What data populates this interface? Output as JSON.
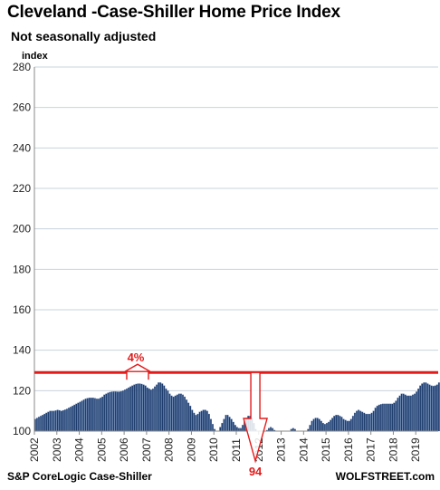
{
  "header": {
    "title": "Cleveland -Case-Shiller Home Price Index",
    "subtitle": "Not seasonally adjusted",
    "unit_label": "index"
  },
  "footer": {
    "source": "S&P CoreLogic Case-Shiller",
    "brand": "WOLFSTREET.com"
  },
  "colors": {
    "bar": "#1f3d6e",
    "bar_edge": "#6f8fc0",
    "reference_line": "#e31b1b",
    "gridline": "#c9d3dd"
  },
  "annotations": {
    "peak_change_label": "4%",
    "trough_label": "94",
    "reference_level": 129,
    "trough_value": 94,
    "up_arrow_year": 2006.6,
    "down_arrow_year": 2011.85
  },
  "chart_data": {
    "type": "bar",
    "title": "Cleveland -Case-Shiller Home Price Index",
    "subtitle": "Not seasonally adjusted",
    "ylabel": "index",
    "xlabel": "",
    "ylim": [
      100,
      280
    ],
    "yticks": [
      100,
      120,
      140,
      160,
      180,
      200,
      220,
      240,
      260,
      280
    ],
    "x_range": [
      2002,
      2020
    ],
    "x_tick_labels": [
      "2002",
      "2003",
      "2004",
      "2005",
      "2006",
      "2007",
      "2008",
      "2009",
      "2010",
      "2011",
      "2012",
      "2013",
      "2014",
      "2015",
      "2016",
      "2017",
      "2018",
      "2019"
    ],
    "grid": true,
    "legend": "none",
    "frequency": "monthly",
    "start": "2002-01",
    "end": "2019-09",
    "series": [
      {
        "values": [
          106,
          106.5,
          107,
          107.5,
          108,
          108.5,
          109,
          109.5,
          110,
          110,
          110,
          110.2,
          110.5,
          110.3,
          110,
          110.3,
          110.6,
          111,
          111.5,
          112,
          112.5,
          113,
          113.5,
          114,
          114.5,
          115,
          115.5,
          116,
          116.3,
          116.5,
          116.5,
          116.5,
          116.3,
          116,
          116,
          116.5,
          117,
          118,
          118.5,
          119,
          119.3,
          119.5,
          119.6,
          119.6,
          119.5,
          119.5,
          119.7,
          120,
          120.5,
          121,
          121.5,
          122,
          122.5,
          123,
          123.3,
          123.5,
          123.5,
          123.3,
          123,
          122.5,
          121.5,
          121,
          120.5,
          121,
          122,
          123,
          124,
          124,
          123.5,
          122.5,
          121,
          120,
          118.5,
          117.5,
          117,
          117.5,
          118,
          118.5,
          118.5,
          118,
          117,
          115.5,
          114,
          112.5,
          110.5,
          109,
          108,
          108.5,
          109.5,
          110,
          110.5,
          110.5,
          110,
          108.5,
          106,
          103.5,
          101,
          100,
          100,
          102,
          104,
          106,
          108,
          108,
          107,
          106,
          104.5,
          103,
          102,
          101.5,
          101.5,
          103,
          105,
          106.5,
          107.5,
          107.5,
          106.5,
          104,
          101,
          98.5,
          97,
          96,
          97,
          98.5,
          100.5,
          101.5,
          102,
          101.5,
          100.5,
          99,
          97,
          95.5,
          94,
          94,
          95.5,
          97.5,
          99.5,
          101,
          101.5,
          101,
          100,
          98.5,
          97.5,
          97,
          98,
          99,
          101,
          103,
          105,
          106,
          106.5,
          106.5,
          106,
          105,
          104,
          103.5,
          104,
          104.5,
          105.5,
          106.5,
          107.5,
          108,
          108,
          107.5,
          107,
          106,
          105.5,
          105,
          105,
          106,
          107.5,
          109,
          110,
          110.5,
          110,
          109.5,
          109,
          108.5,
          108.5,
          108.5,
          109,
          110,
          111.5,
          112.5,
          113,
          113.3,
          113.5,
          113.5,
          113.5,
          113.5,
          113.5,
          113.5,
          114,
          115,
          116.5,
          117.5,
          118.5,
          118.5,
          118,
          117.5,
          117.5,
          117.5,
          118,
          118.5,
          119.5,
          121,
          122.5,
          123.5,
          124,
          124,
          123.5,
          123,
          122.5,
          122.3,
          122.5,
          123,
          124,
          125.5,
          127,
          128,
          128.5,
          129,
          129
        ]
      }
    ]
  }
}
